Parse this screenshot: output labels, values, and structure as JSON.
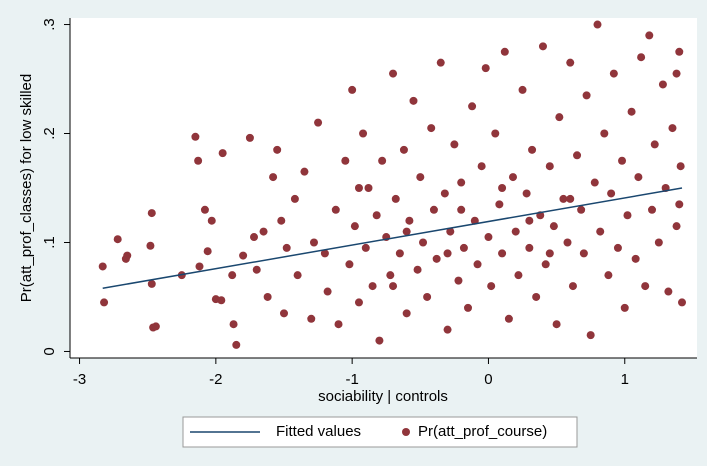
{
  "chart_data": {
    "type": "scatter",
    "xlabel": "sociability | controls",
    "ylabel": "Pr(att_prof_classes) for low skilled",
    "xlim": [
      -3.07,
      1.53
    ],
    "ylim": [
      -0.006,
      0.306
    ],
    "xticks": [
      -3,
      -2,
      -1,
      0,
      1
    ],
    "yticks": [
      0,
      {
        "value": 0.1,
        "label": ".1"
      },
      {
        "value": 0.2,
        "label": ".2"
      },
      {
        "value": 0.3,
        "label": ".3"
      }
    ],
    "legend": "bottom",
    "series": [
      {
        "name": "Fitted values",
        "type": "line",
        "color": "#1a476f",
        "x": [
          -2.83,
          1.42
        ],
        "values": [
          0.058,
          0.15
        ]
      },
      {
        "name": "Pr(att_prof_course)",
        "type": "scatter",
        "color": "#90353b",
        "x": [
          -2.83,
          -2.82,
          -2.72,
          -2.65,
          -2.66,
          -2.47,
          -2.46,
          -2.44,
          -2.48,
          -2.47,
          -2.25,
          -2.15,
          -2.13,
          -2.12,
          -2.08,
          -2.03,
          -2.06,
          -2.0,
          -1.96,
          -1.95,
          -1.88,
          -1.87,
          -1.85,
          -1.8,
          -1.75,
          -1.72,
          -1.7,
          -1.65,
          -1.62,
          -1.58,
          -1.55,
          -1.52,
          -1.5,
          -1.48,
          -1.42,
          -1.4,
          -1.35,
          -1.3,
          -1.28,
          -1.25,
          -1.2,
          -1.18,
          -1.12,
          -1.1,
          -1.05,
          -1.02,
          -1.0,
          -0.98,
          -0.95,
          -0.92,
          -0.9,
          -0.88,
          -0.85,
          -0.82,
          -0.8,
          -0.78,
          -0.75,
          -0.72,
          -0.7,
          -0.68,
          -0.65,
          -0.62,
          -0.6,
          -0.58,
          -0.55,
          -0.52,
          -0.5,
          -0.48,
          -0.45,
          -0.42,
          -0.4,
          -0.38,
          -0.35,
          -0.32,
          -0.3,
          -0.28,
          -0.25,
          -0.22,
          -0.2,
          -0.18,
          -0.15,
          -0.12,
          -0.1,
          -0.08,
          -0.05,
          -0.02,
          0.0,
          0.02,
          0.05,
          0.08,
          0.1,
          0.12,
          0.15,
          0.18,
          0.2,
          0.22,
          0.25,
          0.28,
          0.3,
          0.32,
          0.35,
          0.38,
          0.4,
          0.42,
          0.45,
          0.48,
          0.5,
          0.52,
          0.55,
          0.58,
          0.6,
          0.62,
          0.65,
          0.68,
          0.7,
          0.72,
          0.75,
          0.78,
          0.8,
          0.82,
          0.85,
          0.88,
          0.9,
          0.92,
          0.95,
          0.98,
          1.0,
          1.02,
          1.05,
          1.08,
          1.1,
          1.12,
          1.15,
          1.18,
          1.2,
          1.22,
          1.25,
          1.28,
          1.3,
          1.32,
          1.35,
          1.38,
          1.4,
          1.41,
          1.42,
          1.4,
          1.38,
          -0.95,
          -0.6,
          -0.3,
          0.1,
          0.3,
          0.6,
          -0.7,
          -0.2,
          0.45
        ],
        "values": [
          0.078,
          0.045,
          0.103,
          0.088,
          0.085,
          0.127,
          0.022,
          0.023,
          0.097,
          0.062,
          0.07,
          0.197,
          0.175,
          0.078,
          0.13,
          0.12,
          0.092,
          0.048,
          0.047,
          0.182,
          0.07,
          0.025,
          0.006,
          0.088,
          0.196,
          0.105,
          0.075,
          0.11,
          0.05,
          0.16,
          0.185,
          0.12,
          0.035,
          0.095,
          0.14,
          0.07,
          0.165,
          0.03,
          0.1,
          0.21,
          0.09,
          0.055,
          0.13,
          0.025,
          0.175,
          0.08,
          0.24,
          0.115,
          0.045,
          0.2,
          0.095,
          0.15,
          0.06,
          0.125,
          0.01,
          0.175,
          0.105,
          0.07,
          0.255,
          0.14,
          0.09,
          0.185,
          0.035,
          0.12,
          0.23,
          0.075,
          0.16,
          0.1,
          0.05,
          0.205,
          0.13,
          0.085,
          0.265,
          0.145,
          0.02,
          0.11,
          0.19,
          0.065,
          0.155,
          0.095,
          0.04,
          0.225,
          0.12,
          0.08,
          0.17,
          0.26,
          0.105,
          0.06,
          0.2,
          0.135,
          0.09,
          0.275,
          0.03,
          0.16,
          0.11,
          0.07,
          0.24,
          0.145,
          0.095,
          0.185,
          0.05,
          0.125,
          0.28,
          0.08,
          0.17,
          0.115,
          0.025,
          0.215,
          0.14,
          0.1,
          0.265,
          0.06,
          0.18,
          0.13,
          0.09,
          0.235,
          0.015,
          0.155,
          0.3,
          0.11,
          0.2,
          0.07,
          0.145,
          0.255,
          0.095,
          0.175,
          0.04,
          0.125,
          0.22,
          0.085,
          0.16,
          0.27,
          0.06,
          0.29,
          0.13,
          0.19,
          0.1,
          0.245,
          0.15,
          0.055,
          0.205,
          0.115,
          0.275,
          0.17,
          0.045,
          0.135,
          0.255,
          0.15,
          0.11,
          0.09,
          0.15,
          0.12,
          0.14,
          0.06,
          0.13,
          0.09
        ]
      }
    ]
  }
}
